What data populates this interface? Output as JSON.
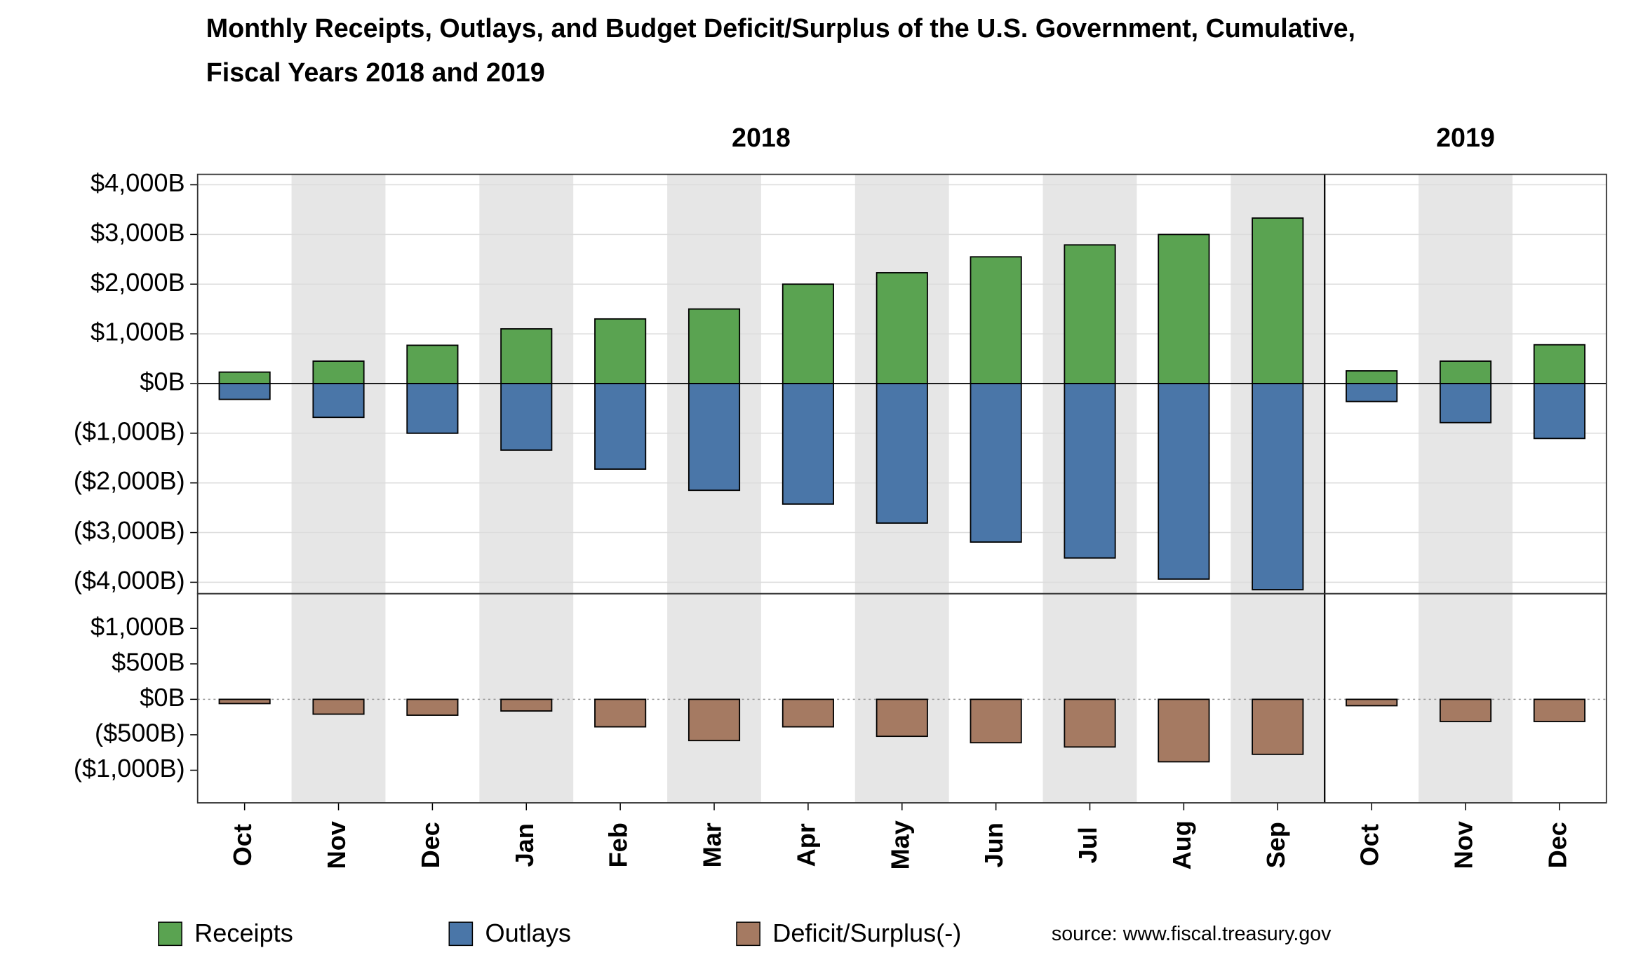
{
  "chart_data": [
    {
      "type": "bar",
      "title": [
        "Monthly Receipts, Outlays, and Budget Deficit/Surplus of the U.S. Government, Cumulative,",
        "Fiscal Years 2018 and 2019"
      ],
      "groups": [
        {
          "label": "2018",
          "categories": [
            "Oct",
            "Nov",
            "Dec",
            "Jan",
            "Feb",
            "Mar",
            "Apr",
            "May",
            "Jun",
            "Jul",
            "Aug",
            "Sep"
          ]
        },
        {
          "label": "2019",
          "categories": [
            "Oct",
            "Nov",
            "Dec"
          ]
        }
      ],
      "series": [
        {
          "name": "Receipts",
          "color": "#5aa351",
          "values": [
            230,
            450,
            770,
            1100,
            1300,
            1500,
            2000,
            2230,
            2550,
            2790,
            3000,
            3330,
            255,
            450,
            780
          ]
        },
        {
          "name": "Outlays",
          "color": "#4a76a8",
          "values": [
            -319,
            -681,
            -1000,
            -1340,
            -1723,
            -2149,
            -2426,
            -2809,
            -3191,
            -3511,
            -3936,
            -4149,
            -362,
            -787,
            -1106
          ]
        }
      ],
      "ylim": [
        -4230,
        4210
      ],
      "yticks": [
        {
          "value": -4000,
          "label": "($4,000B)"
        },
        {
          "value": -3000,
          "label": "($3,000B)"
        },
        {
          "value": -2000,
          "label": "($2,000B)"
        },
        {
          "value": -1000,
          "label": "($1,000B)"
        },
        {
          "value": 0,
          "label": "$0B"
        },
        {
          "value": 1000,
          "label": "$1,000B"
        },
        {
          "value": 2000,
          "label": "$2,000B"
        },
        {
          "value": 3000,
          "label": "$3,000B"
        },
        {
          "value": 4000,
          "label": "$4,000B"
        }
      ],
      "grid": true
    },
    {
      "type": "bar",
      "series": [
        {
          "name": "Deficit/Surplus(-)",
          "color": "#a57a62",
          "values": [
            -60,
            -209,
            -224,
            -164,
            -388,
            -582,
            -388,
            -522,
            -612,
            -672,
            -881,
            -776,
            -90,
            -313,
            -313
          ]
        }
      ],
      "ylim": [
        -1460,
        1490
      ],
      "yticks": [
        {
          "value": -1000,
          "label": "($1,000B)"
        },
        {
          "value": -500,
          "label": "($500B)"
        },
        {
          "value": 0,
          "label": "$0B"
        },
        {
          "value": 500,
          "label": "$500B"
        },
        {
          "value": 1000,
          "label": "$1,000B"
        }
      ],
      "grid": false
    }
  ],
  "source": "source: www.fiscal.treasury.gov"
}
